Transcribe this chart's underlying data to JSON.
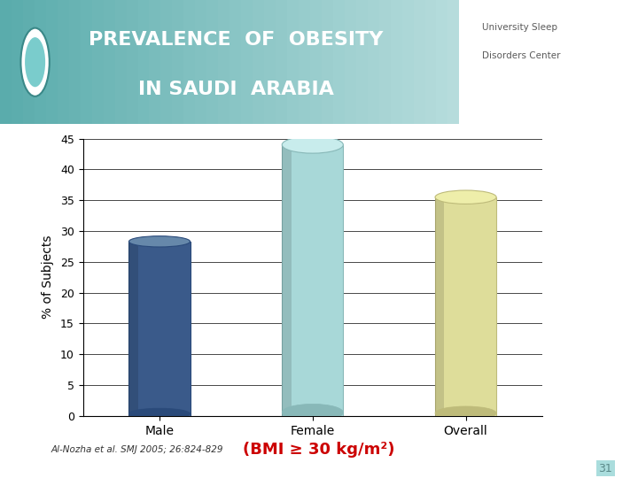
{
  "categories": [
    "Male",
    "Female",
    "Overall"
  ],
  "values": [
    28.3,
    44.0,
    35.5
  ],
  "bar_colors": [
    "#3A5A8A",
    "#A8D8D8",
    "#DEDD9A"
  ],
  "bar_top_colors": [
    "#6688AA",
    "#C8ECEC",
    "#EEEEAA"
  ],
  "bar_edge_colors": [
    "#2A4A7A",
    "#88B8B8",
    "#BEBB7A"
  ],
  "ylim": [
    0,
    45
  ],
  "yticks": [
    0,
    5,
    10,
    15,
    20,
    25,
    30,
    35,
    40,
    45
  ],
  "ylabel": "% of Subjects",
  "xlabel_citation": "Al-Nozha et al. SMJ 2005; 26:824-829",
  "xlabel_bmi": "(BMI ≥ 30 kg/m²)",
  "title_line1": "PREVALENCE  OF  OBESITY",
  "title_line2": "IN SAUDI  ARABIA",
  "bg_color": "#FFFFFF",
  "chart_bg": "#FFFFFF",
  "header_color_left": "#4AACAC",
  "header_color_right": "#AACCCC",
  "page_number": "31",
  "bar_width": 0.35
}
